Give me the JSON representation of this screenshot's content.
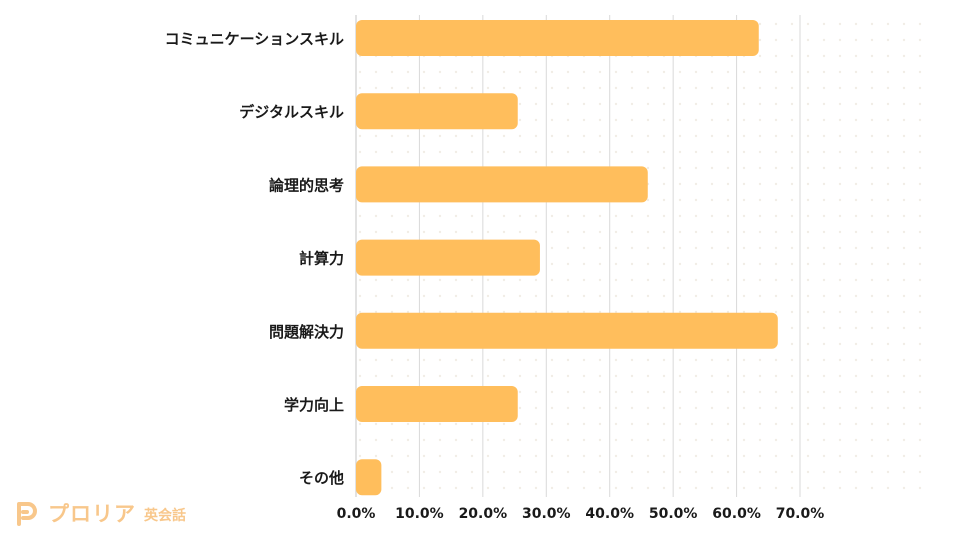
{
  "chart_data": {
    "type": "bar",
    "orientation": "horizontal",
    "categories": [
      "コミュニケーションスキル",
      "デジタルスキル",
      "論理的思考",
      "計算力",
      "問題解決力",
      "学力向上",
      "その他"
    ],
    "values": [
      63.5,
      25.5,
      46.0,
      29.0,
      66.5,
      25.5,
      4.0
    ],
    "xlim": [
      0,
      70
    ],
    "xticks": [
      "0.0%",
      "10.0%",
      "20.0%",
      "30.0%",
      "40.0%",
      "50.0%",
      "60.0%",
      "70.0%"
    ],
    "grid": true,
    "bar_color": "#ffbe5c",
    "grid_color": "#d9d9d9",
    "title": "",
    "xlabel": "",
    "ylabel": ""
  },
  "brand": {
    "name": "プロリア",
    "sub": "英会話",
    "color": "#f8c78b"
  }
}
